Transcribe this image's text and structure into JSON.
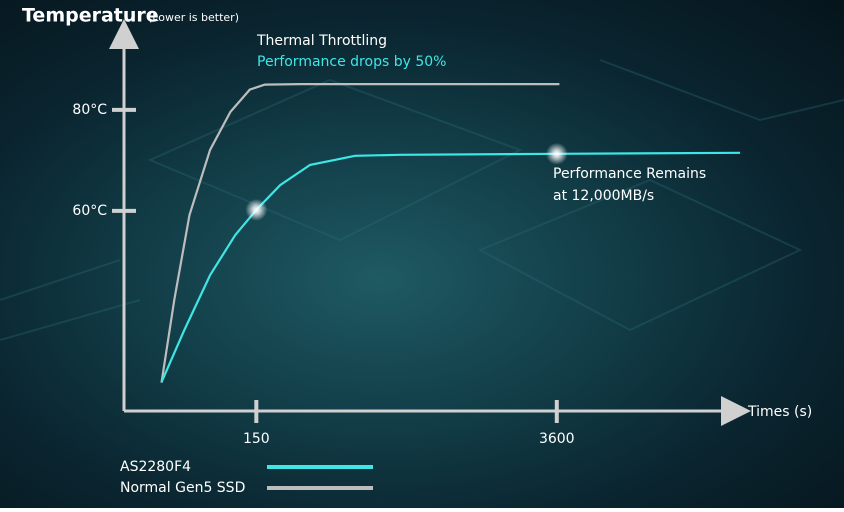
{
  "chart_data": {
    "type": "line",
    "title": "Temperature",
    "subtitle": "(Lower is better)",
    "x_label": "Times (s)",
    "xscale": "log",
    "xlim": [
      37,
      25000
    ],
    "xticks": [
      150,
      3600
    ],
    "ylim": [
      20,
      96
    ],
    "yticks": [
      {
        "value": 60,
        "label": "60°C"
      },
      {
        "value": 80,
        "label": "80°C"
      }
    ],
    "annotations": [
      "Thermal Throttling",
      "Performance drops by 50%",
      "Performance Remains",
      "at 12,000MB/s"
    ],
    "series": [
      {
        "name": "AS2280F4",
        "color": "#3ee6e6",
        "x": [
          55,
          70,
          92,
          120,
          150,
          193,
          265,
          426,
          686,
          3600,
          25000
        ],
        "values": [
          26.1,
          36.4,
          47.3,
          55.2,
          60.2,
          65.1,
          69.1,
          70.9,
          71.1,
          71.3,
          71.5
        ]
      },
      {
        "name": "Normal Gen5 SSD",
        "color": "#bdbdbd",
        "x": [
          55,
          63,
          74,
          92,
          114,
          140,
          164,
          238,
          3700
        ],
        "values": [
          26,
          42.4,
          59.2,
          72.1,
          79.6,
          84,
          85,
          85.1,
          85.1
        ]
      }
    ]
  }
}
